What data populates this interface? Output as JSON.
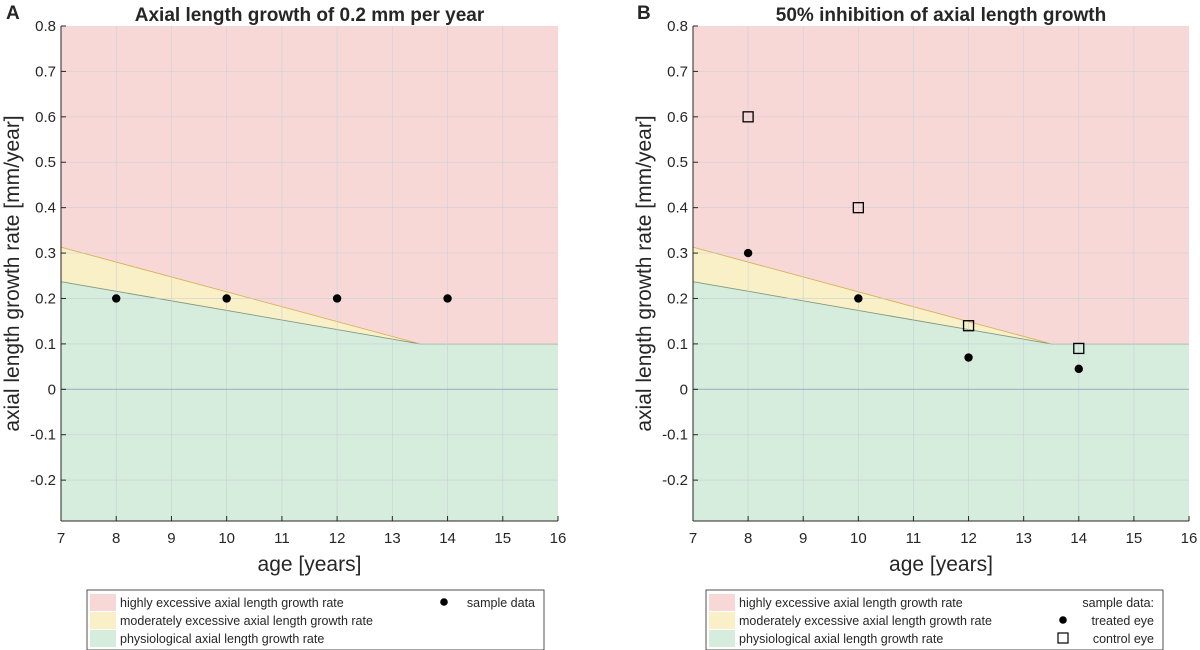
{
  "colors": {
    "high": "#f8d8d6",
    "moderate": "#faf0c8",
    "physio": "#d6ecdc",
    "grid": "#c8cfd6",
    "boundary_moderate": "#d9b25a",
    "boundary_physio": "#7f9a7f",
    "zero_line": "#8fa6bc"
  },
  "chart_data": [
    {
      "type": "scatter",
      "panel_label": "A",
      "title": "Axial length growth of 0.2 mm per year",
      "xlabel": "age [years]",
      "ylabel": "axial length growth rate [mm/year]",
      "xlim": [
        7,
        16
      ],
      "ylim": [
        -0.29,
        0.8
      ],
      "xticks": [
        "7",
        "8",
        "9",
        "10",
        "11",
        "12",
        "13",
        "14",
        "15",
        "16"
      ],
      "yticks": [
        "0.8",
        "0.7",
        "0.6",
        "0.5",
        "0.4",
        "0.3",
        "0.2",
        "0.1",
        "0",
        "-0.1",
        "-0.2"
      ],
      "grid": true,
      "regions": {
        "moderate_upper": [
          [
            7,
            0.313
          ],
          [
            13.5,
            0.1
          ],
          [
            16,
            0.1
          ]
        ],
        "physio_upper": [
          [
            7,
            0.237
          ],
          [
            13.5,
            0.1
          ],
          [
            16,
            0.1
          ]
        ]
      },
      "series": [
        {
          "name": "sample data",
          "marker": "filled-circle",
          "x": [
            8,
            10,
            12,
            14
          ],
          "y": [
            0.2,
            0.2,
            0.2,
            0.2
          ]
        }
      ],
      "legend": {
        "position": "bottom",
        "region_labels": [
          "highly excessive axial length growth rate",
          "moderately excessive axial length growth rate",
          "physiological axial length growth rate"
        ],
        "marker_header": "",
        "marker_labels": [
          "sample data"
        ]
      }
    },
    {
      "type": "scatter",
      "panel_label": "B",
      "title": "50% inhibition of axial length growth",
      "xlabel": "age [years]",
      "ylabel": "axial length growth rate [mm/year]",
      "xlim": [
        7,
        16
      ],
      "ylim": [
        -0.29,
        0.8
      ],
      "xticks": [
        "7",
        "8",
        "9",
        "10",
        "11",
        "12",
        "13",
        "14",
        "15",
        "16"
      ],
      "yticks": [
        "0.8",
        "0.7",
        "0.6",
        "0.5",
        "0.4",
        "0.3",
        "0.2",
        "0.1",
        "0",
        "-0.1",
        "-0.2"
      ],
      "grid": true,
      "regions": {
        "moderate_upper": [
          [
            7,
            0.313
          ],
          [
            13.5,
            0.1
          ],
          [
            16,
            0.1
          ]
        ],
        "physio_upper": [
          [
            7,
            0.237
          ],
          [
            13.5,
            0.1
          ],
          [
            16,
            0.1
          ]
        ]
      },
      "series": [
        {
          "name": "treated eye",
          "marker": "filled-circle",
          "x": [
            8,
            10,
            12,
            14
          ],
          "y": [
            0.3,
            0.2,
            0.07,
            0.045
          ]
        },
        {
          "name": "control eye",
          "marker": "open-square",
          "x": [
            8,
            10,
            12,
            14
          ],
          "y": [
            0.6,
            0.4,
            0.14,
            0.09
          ]
        }
      ],
      "legend": {
        "position": "bottom",
        "region_labels": [
          "highly excessive axial length growth rate",
          "moderately excessive axial length growth rate",
          "physiological axial length growth rate"
        ],
        "marker_header": "sample data:",
        "marker_labels": [
          "treated eye",
          "control eye"
        ]
      }
    }
  ]
}
